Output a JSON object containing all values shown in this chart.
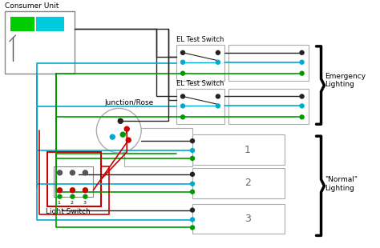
{
  "colors": {
    "black": "#222222",
    "gray": "#888888",
    "darkgray": "#555555",
    "red": "#cc0000",
    "green": "#009900",
    "cyan": "#00aacc",
    "box_border": "#aaaaaa",
    "cu_green": "#00cc00",
    "cu_cyan": "#00ccdd"
  },
  "consumer_unit_label": "Consumer Unit",
  "junction_label": "Junction/Rose",
  "light_switch_label": "Light Switch",
  "el_switch1_label": "EL Test Switch",
  "el_switch2_label": "EL Test Switch",
  "light1_label": "1",
  "light2_label": "2",
  "light3_label": "3",
  "emergency_label": "Emergency\nLighting",
  "normal_label": "\"Normal\"\nLighting"
}
